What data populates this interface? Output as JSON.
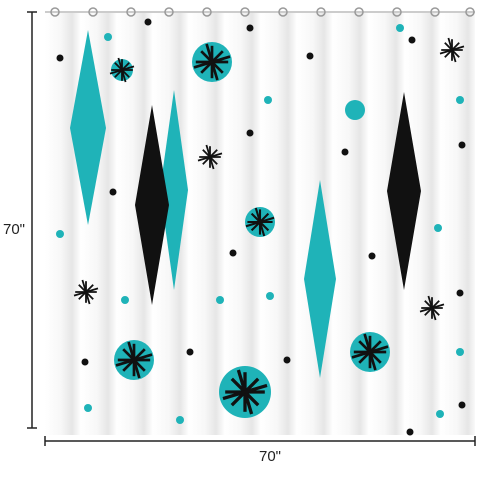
{
  "dimensions": {
    "height": "70\"",
    "width": "70\""
  }
}
